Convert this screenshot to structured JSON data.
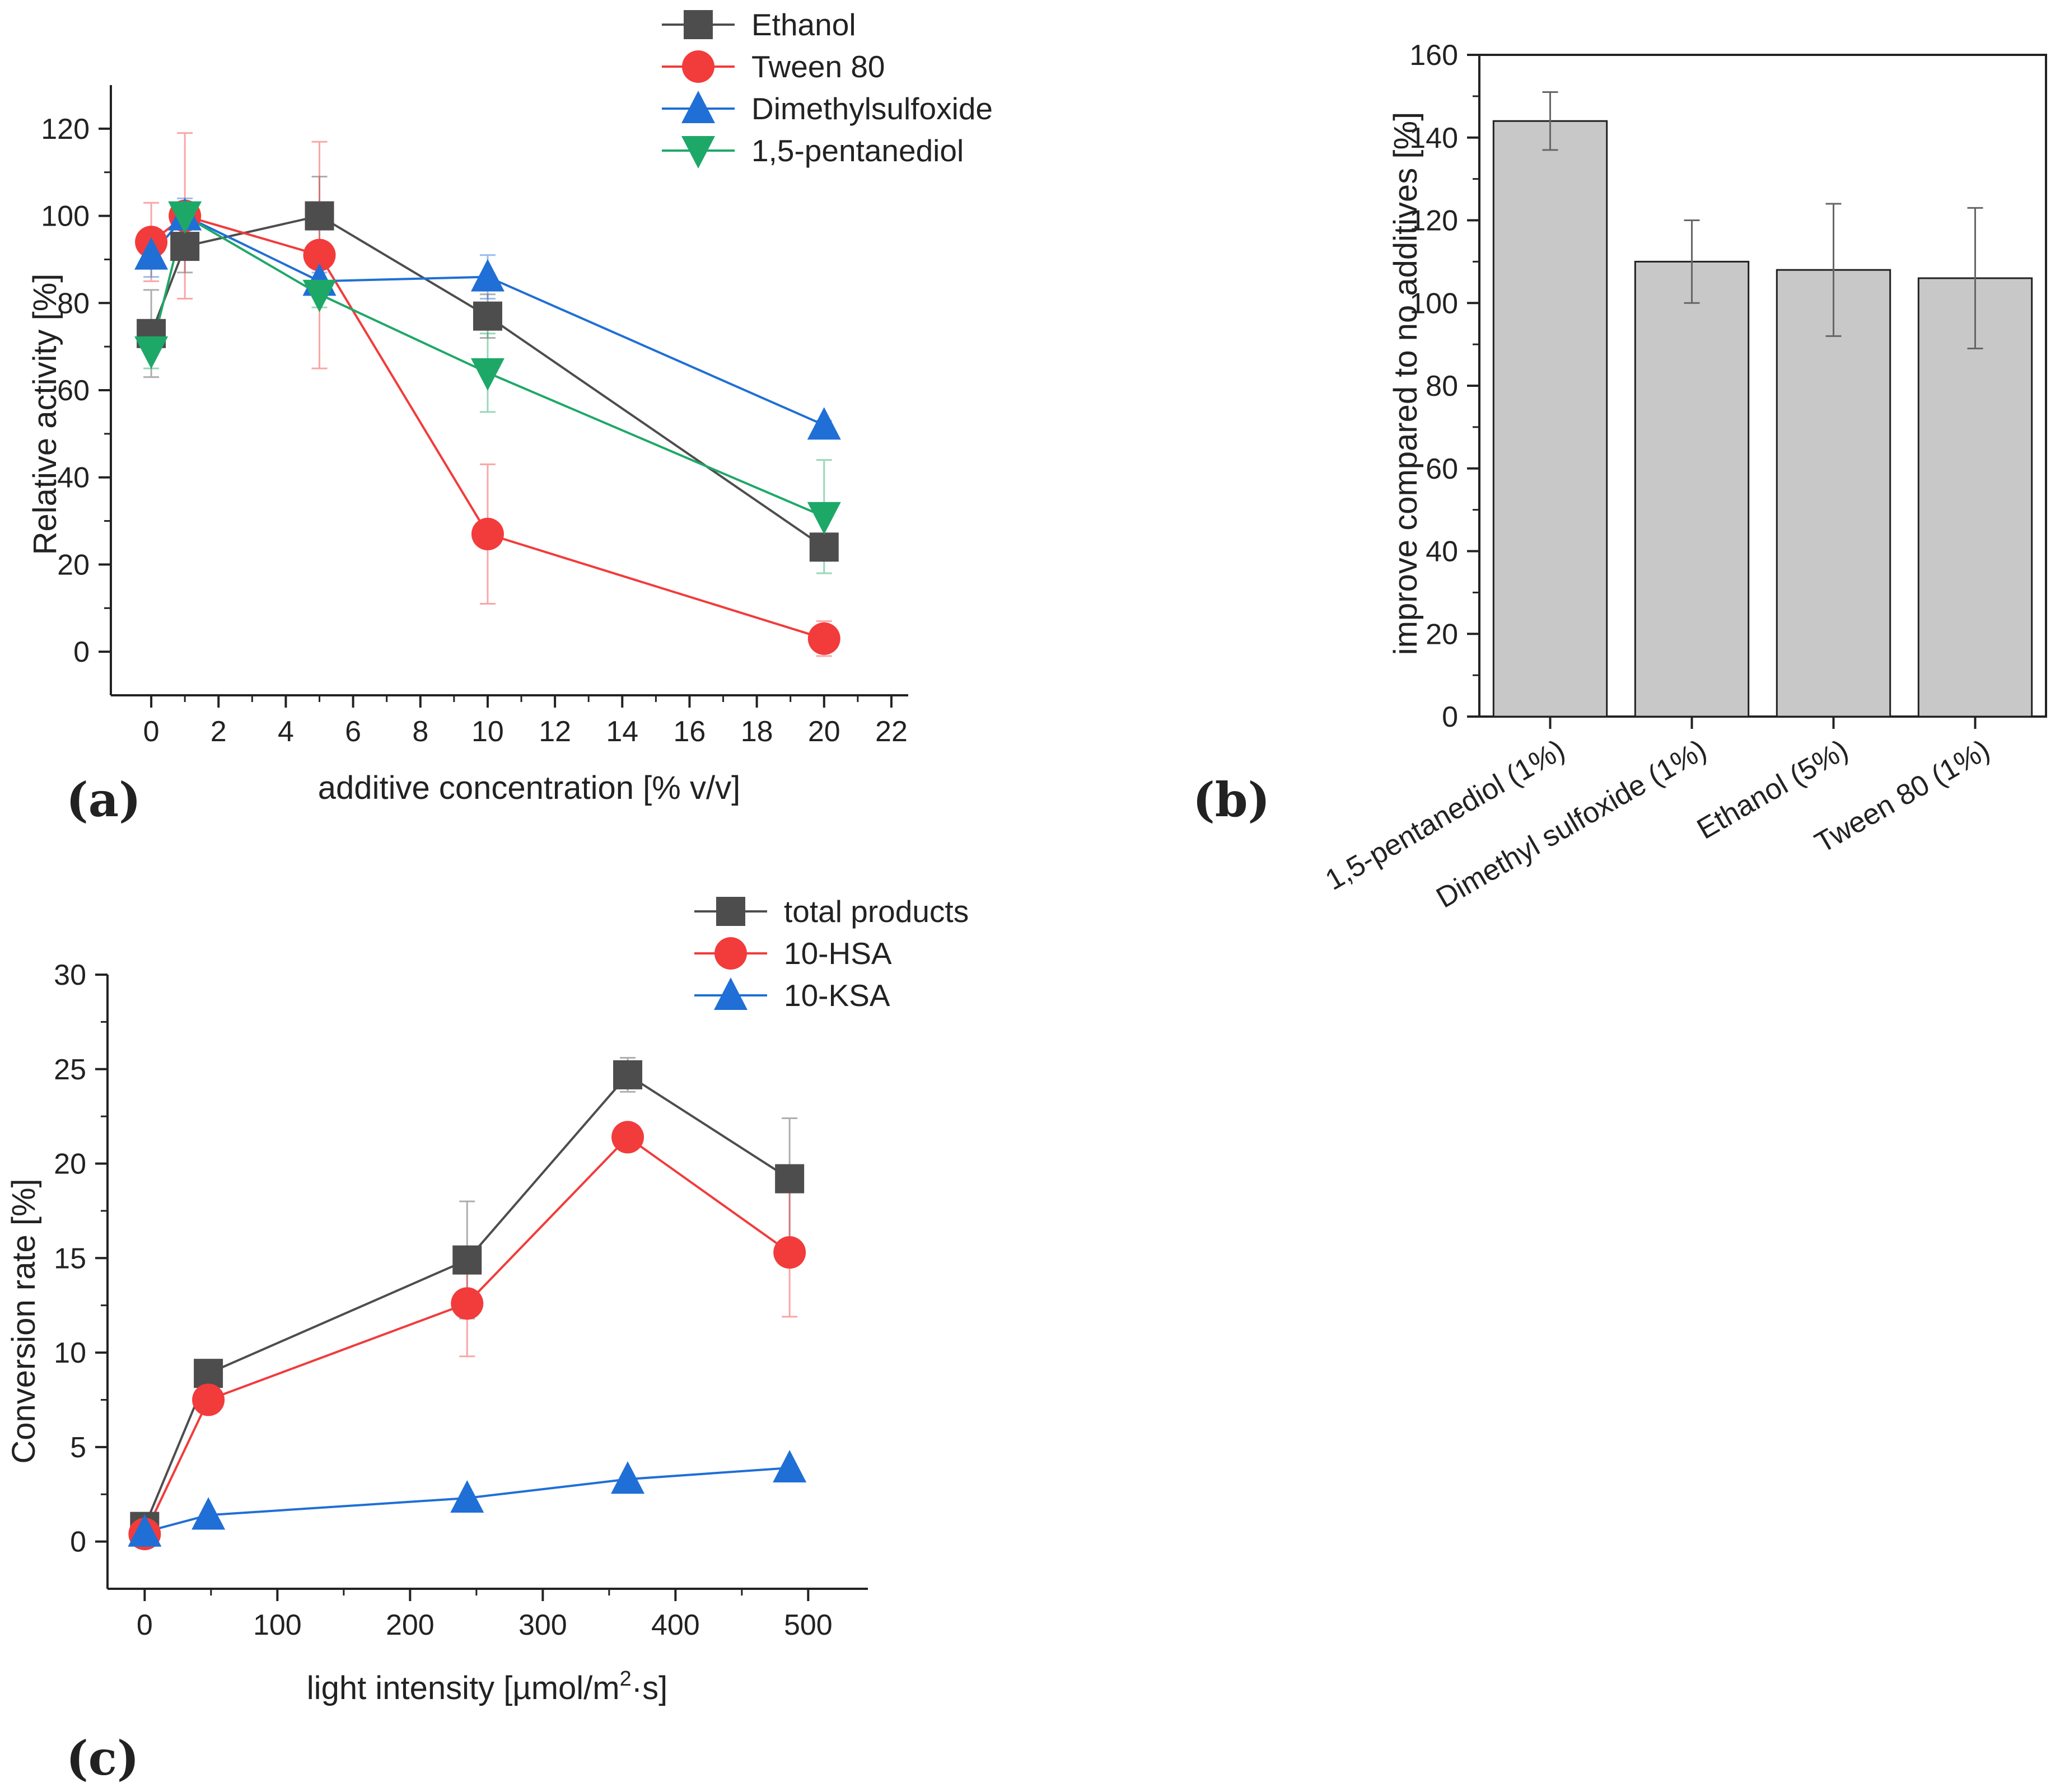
{
  "chart_data": [
    {
      "panel": "(a)",
      "type": "line",
      "xlabel": "additive concentration [% v/v]",
      "ylabel": "Relative activity [%]",
      "xlim": [
        -1.2,
        22.5
      ],
      "ylim": [
        -10,
        130
      ],
      "xticks": [
        0,
        2,
        4,
        6,
        8,
        10,
        12,
        14,
        16,
        18,
        20,
        22
      ],
      "yticks": [
        0,
        20,
        40,
        60,
        80,
        100,
        120
      ],
      "legend_position": "top-right",
      "series": [
        {
          "name": "Ethanol",
          "color": "#4d4d4d",
          "marker": "square",
          "x": [
            0,
            1,
            5,
            10,
            20
          ],
          "y": [
            73,
            93,
            100,
            77,
            24
          ],
          "err": [
            10,
            6,
            9,
            5,
            3
          ]
        },
        {
          "name": "Tween 80",
          "color": "#f23b3b",
          "marker": "circle",
          "x": [
            0,
            1,
            5,
            10,
            20
          ],
          "y": [
            94,
            100,
            91,
            27,
            3
          ],
          "err": [
            9,
            19,
            26,
            16,
            4
          ]
        },
        {
          "name": "Dimethylsulfoxide",
          "color": "#1f6fd6",
          "marker": "triangle-up",
          "x": [
            0,
            1,
            5,
            10,
            20
          ],
          "y": [
            91,
            100,
            85,
            86,
            52
          ],
          "err": [
            5,
            4,
            2,
            5,
            1
          ]
        },
        {
          "name": "1,5-pentanediol",
          "color": "#1ea868",
          "marker": "triangle-down",
          "x": [
            0,
            1,
            5,
            10,
            20
          ],
          "y": [
            69,
            100,
            82,
            64,
            31
          ],
          "err": [
            4,
            3,
            3,
            9,
            13
          ]
        }
      ]
    },
    {
      "panel": "(b)",
      "type": "bar",
      "xlabel": "",
      "ylabel": "improve compared to no additives [%]",
      "ylim": [
        0,
        160
      ],
      "yticks": [
        0,
        20,
        40,
        60,
        80,
        100,
        120,
        140,
        160
      ],
      "categories": [
        "1,5-pentanediol (1%)",
        "Dimethyl sulfoxide (1%)",
        "Ethanol (5%)",
        "Tween 80 (1%)"
      ],
      "values": [
        144,
        110,
        108,
        106
      ],
      "err": [
        7,
        10,
        16,
        17
      ],
      "bar_color": "#c8c8c8"
    },
    {
      "panel": "(c)",
      "type": "line",
      "xlabel": "light intensity [µmol/m",
      "xlabel_sup": "2",
      "xlabel_end": "·s]",
      "ylabel": "Conversion rate [%]",
      "xlim": [
        -28,
        545
      ],
      "ylim": [
        -2.5,
        30
      ],
      "xticks": [
        0,
        100,
        200,
        300,
        400,
        500
      ],
      "yticks": [
        0,
        5,
        10,
        15,
        20,
        25,
        30
      ],
      "legend_position": "top-right",
      "series": [
        {
          "name": "total products",
          "color": "#4d4d4d",
          "marker": "square",
          "x": [
            0,
            48,
            243,
            364,
            486
          ],
          "y": [
            0.8,
            8.9,
            14.9,
            24.7,
            19.2
          ],
          "err": [
            0.2,
            0.5,
            3.1,
            0.9,
            3.2
          ]
        },
        {
          "name": "10-HSA",
          "color": "#f23b3b",
          "marker": "circle",
          "x": [
            0,
            48,
            243,
            364,
            486
          ],
          "y": [
            0.4,
            7.5,
            12.6,
            21.4,
            15.3
          ],
          "err": [
            0.1,
            0.3,
            2.8,
            0.7,
            3.4
          ]
        },
        {
          "name": "10-KSA",
          "color": "#1f6fd6",
          "marker": "triangle-up",
          "x": [
            0,
            48,
            243,
            364,
            486
          ],
          "y": [
            0.5,
            1.4,
            2.3,
            3.3,
            3.9
          ],
          "err": [
            0.05,
            0.1,
            0.1,
            0.1,
            0.1
          ]
        }
      ]
    }
  ]
}
